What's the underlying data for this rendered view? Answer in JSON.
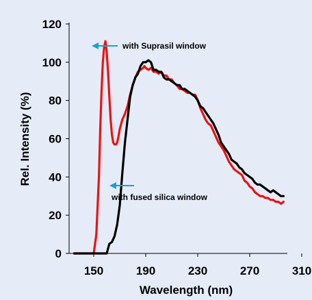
{
  "colors": {
    "background": "#e5ecf8",
    "suprasil_series": "#ee1111",
    "fused_silica_series": "#000000",
    "arrow": "#1aa0d6",
    "axis": "#000000"
  },
  "chart_data": {
    "type": "line",
    "title": "",
    "xlabel": "Wavelength (nm)",
    "ylabel": "Rel. Intensity (%)",
    "xlim": [
      135,
      310
    ],
    "ylim": [
      0,
      120
    ],
    "xticks": [
      150,
      190,
      230,
      270,
      310
    ],
    "yticks": [
      0,
      20,
      40,
      60,
      80,
      100,
      120
    ],
    "grid": false,
    "series": [
      {
        "key": "suprasil",
        "color": "#ee1111",
        "x": [
          135,
          148,
          150,
          152,
          154,
          155,
          156,
          157,
          158,
          159,
          160,
          161,
          162,
          163,
          164,
          165,
          166,
          167,
          168,
          169,
          170,
          172,
          174,
          176,
          178,
          180,
          182,
          184,
          186,
          188,
          189,
          190,
          192,
          194,
          196,
          198,
          200,
          202,
          204,
          206,
          208,
          210,
          212,
          214,
          216,
          218,
          220,
          222,
          224,
          226,
          228,
          230,
          232,
          234,
          236,
          238,
          240,
          242,
          244,
          246,
          248,
          250,
          252,
          254,
          256,
          258,
          260,
          262,
          264,
          266,
          268,
          270,
          272,
          274,
          276,
          278,
          280,
          282,
          284,
          286,
          288,
          290,
          292,
          294,
          296
        ],
        "y": [
          0,
          0,
          0,
          10,
          40,
          65,
          85,
          100,
          108,
          111,
          105,
          95,
          82,
          70,
          62,
          58,
          57,
          57,
          58,
          61,
          65,
          70,
          73,
          77,
          83,
          88,
          92,
          95,
          96,
          97,
          98,
          97,
          96,
          97,
          95,
          95,
          94,
          95,
          93,
          93,
          91,
          91,
          89,
          88,
          86,
          86,
          85,
          84,
          84,
          83,
          83,
          80,
          76,
          73,
          70,
          68,
          67,
          64,
          61,
          58,
          56,
          54,
          51,
          48,
          46,
          44,
          43,
          42,
          41,
          38,
          37,
          35,
          34,
          32,
          31,
          30,
          30,
          29,
          29,
          28,
          28,
          27,
          27,
          26,
          27
        ]
      },
      {
        "key": "fused_silica",
        "color": "#000000",
        "x": [
          135,
          155,
          160,
          162,
          164,
          166,
          168,
          170,
          172,
          174,
          176,
          178,
          180,
          182,
          184,
          186,
          188,
          190,
          192,
          194,
          196,
          198,
          200,
          202,
          204,
          206,
          208,
          210,
          212,
          214,
          216,
          218,
          220,
          222,
          224,
          226,
          228,
          230,
          232,
          234,
          236,
          238,
          240,
          242,
          244,
          246,
          248,
          250,
          252,
          254,
          256,
          258,
          260,
          262,
          264,
          266,
          268,
          270,
          272,
          274,
          276,
          278,
          280,
          282,
          284,
          286,
          288,
          290,
          292,
          294,
          296
        ],
        "y": [
          0,
          0,
          0,
          5,
          6,
          9,
          15,
          25,
          42,
          58,
          70,
          82,
          88,
          92,
          94,
          98,
          100,
          100,
          101,
          100,
          96,
          96,
          95,
          95,
          92,
          91,
          91,
          90,
          89,
          88,
          88,
          86,
          86,
          85,
          84,
          83,
          82,
          80,
          77,
          76,
          74,
          72,
          70,
          68,
          65,
          62,
          58,
          56,
          54,
          52,
          49,
          48,
          47,
          45,
          44,
          42,
          41,
          40,
          39,
          37,
          36,
          36,
          35,
          34,
          33,
          32,
          33,
          32,
          31,
          30,
          30
        ]
      }
    ],
    "annotations": [
      {
        "key": "suprasil",
        "text": "with Suprasil window"
      },
      {
        "key": "fused_silica",
        "text": "with fused silica window"
      }
    ]
  }
}
